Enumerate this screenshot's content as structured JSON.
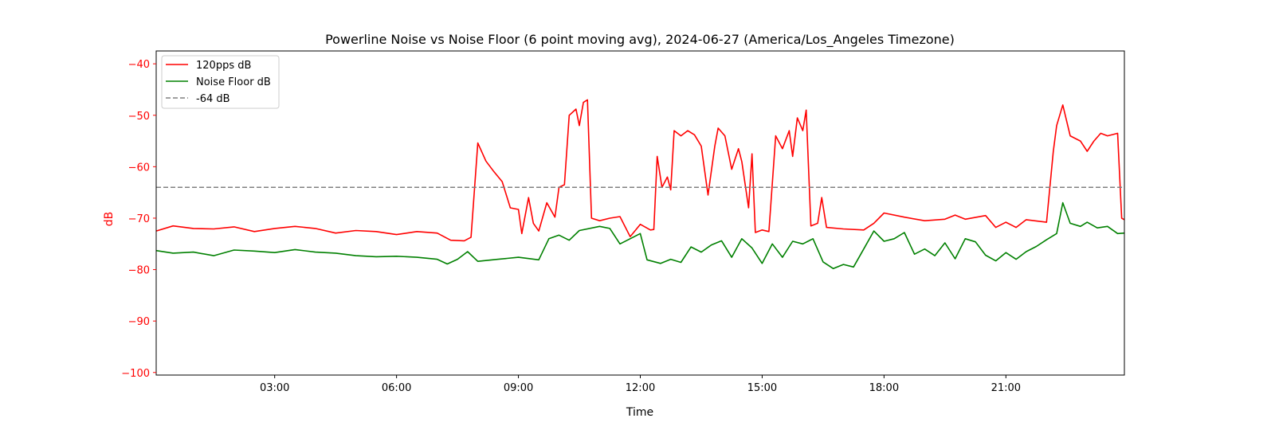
{
  "chart_data": {
    "type": "line",
    "title": "Powerline Noise vs Noise Floor (6 point moving avg), 2024-06-27 (America/Los_Angeles Timezone)",
    "xlabel": "Time",
    "ylabel": "dB",
    "xlim": [
      "00:05",
      "23:55"
    ],
    "ylim": [
      -100.5,
      -37.5
    ],
    "x_ticks": [
      "03:00",
      "06:00",
      "09:00",
      "12:00",
      "15:00",
      "18:00",
      "21:00"
    ],
    "y_ticks": [
      -40,
      -50,
      -60,
      -70,
      -80,
      -90,
      -100
    ],
    "grid": false,
    "legend_position": "upper-left",
    "colors": {
      "signal": "#ff0000",
      "floor": "#008000",
      "threshold": "#808080",
      "ylabel": "#ff0000",
      "yticks": "#ff0000"
    },
    "series": [
      {
        "name": "120pps dB",
        "color": "#ff0000",
        "style": "solid",
        "points": [
          [
            "00:05",
            -72.5
          ],
          [
            "00:30",
            -71.5
          ],
          [
            "01:00",
            -72.0
          ],
          [
            "01:30",
            -72.1
          ],
          [
            "02:00",
            -71.7
          ],
          [
            "02:30",
            -72.6
          ],
          [
            "03:00",
            -72.0
          ],
          [
            "03:30",
            -71.6
          ],
          [
            "04:00",
            -72.0
          ],
          [
            "04:30",
            -72.9
          ],
          [
            "05:00",
            -72.4
          ],
          [
            "05:30",
            -72.6
          ],
          [
            "06:00",
            -73.2
          ],
          [
            "06:30",
            -72.6
          ],
          [
            "07:00",
            -72.9
          ],
          [
            "07:20",
            -74.3
          ],
          [
            "07:40",
            -74.4
          ],
          [
            "07:50",
            -73.7
          ],
          [
            "08:00",
            -55.4
          ],
          [
            "08:12",
            -58.9
          ],
          [
            "08:24",
            -61.0
          ],
          [
            "08:36",
            -62.9
          ],
          [
            "08:48",
            -68.0
          ],
          [
            "09:00",
            -68.3
          ],
          [
            "09:05",
            -73.0
          ],
          [
            "09:15",
            -66.0
          ],
          [
            "09:22",
            -71.0
          ],
          [
            "09:30",
            -72.5
          ],
          [
            "09:42",
            -67.0
          ],
          [
            "09:54",
            -69.8
          ],
          [
            "10:00",
            -64.0
          ],
          [
            "10:08",
            -63.5
          ],
          [
            "10:15",
            -50.0
          ],
          [
            "10:25",
            -48.8
          ],
          [
            "10:30",
            -52.0
          ],
          [
            "10:36",
            -47.5
          ],
          [
            "10:42",
            -47.0
          ],
          [
            "10:48",
            -70.0
          ],
          [
            "11:00",
            -70.5
          ],
          [
            "11:15",
            -70.0
          ],
          [
            "11:30",
            -69.7
          ],
          [
            "11:45",
            -73.6
          ],
          [
            "12:00",
            -71.2
          ],
          [
            "12:15",
            -72.3
          ],
          [
            "12:20",
            -72.2
          ],
          [
            "12:25",
            -58.0
          ],
          [
            "12:32",
            -64.0
          ],
          [
            "12:40",
            -62.0
          ],
          [
            "12:45",
            -64.5
          ],
          [
            "12:50",
            -53.0
          ],
          [
            "13:00",
            -54.0
          ],
          [
            "13:10",
            -53.0
          ],
          [
            "13:20",
            -53.8
          ],
          [
            "13:30",
            -56.0
          ],
          [
            "13:40",
            -65.5
          ],
          [
            "13:50",
            -56.0
          ],
          [
            "13:55",
            -52.5
          ],
          [
            "14:05",
            -54.0
          ],
          [
            "14:15",
            -60.5
          ],
          [
            "14:25",
            -56.5
          ],
          [
            "14:30",
            -59.0
          ],
          [
            "14:40",
            -68.0
          ],
          [
            "14:45",
            -57.5
          ],
          [
            "14:50",
            -72.8
          ],
          [
            "15:00",
            -72.3
          ],
          [
            "15:10",
            -72.6
          ],
          [
            "15:20",
            -54.0
          ],
          [
            "15:30",
            -56.5
          ],
          [
            "15:40",
            -53.0
          ],
          [
            "15:45",
            -58.0
          ],
          [
            "15:52",
            -50.5
          ],
          [
            "16:00",
            -53.0
          ],
          [
            "16:05",
            -49.0
          ],
          [
            "16:12",
            -71.5
          ],
          [
            "16:22",
            -71.0
          ],
          [
            "16:28",
            -66.0
          ],
          [
            "16:35",
            -71.8
          ],
          [
            "17:00",
            -72.1
          ],
          [
            "17:30",
            -72.3
          ],
          [
            "17:45",
            -71.0
          ],
          [
            "18:00",
            -69.0
          ],
          [
            "18:30",
            -69.8
          ],
          [
            "19:00",
            -70.5
          ],
          [
            "19:30",
            -70.2
          ],
          [
            "19:45",
            -69.4
          ],
          [
            "20:00",
            -70.2
          ],
          [
            "20:30",
            -69.5
          ],
          [
            "20:45",
            -71.8
          ],
          [
            "21:00",
            -70.8
          ],
          [
            "21:15",
            -71.8
          ],
          [
            "21:30",
            -70.3
          ],
          [
            "22:00",
            -70.8
          ],
          [
            "22:10",
            -57.0
          ],
          [
            "22:15",
            -52.0
          ],
          [
            "22:24",
            -48.0
          ],
          [
            "22:35",
            -54.0
          ],
          [
            "22:50",
            -55.0
          ],
          [
            "23:00",
            -57.0
          ],
          [
            "23:10",
            -55.0
          ],
          [
            "23:20",
            -53.5
          ],
          [
            "23:30",
            -54.0
          ],
          [
            "23:45",
            -53.5
          ],
          [
            "23:51",
            -70.0
          ],
          [
            "23:55",
            -70.3
          ]
        ]
      },
      {
        "name": "Noise Floor dB",
        "color": "#008000",
        "style": "solid",
        "points": [
          [
            "00:05",
            -76.3
          ],
          [
            "00:30",
            -76.8
          ],
          [
            "01:00",
            -76.6
          ],
          [
            "01:30",
            -77.3
          ],
          [
            "02:00",
            -76.2
          ],
          [
            "02:30",
            -76.4
          ],
          [
            "03:00",
            -76.7
          ],
          [
            "03:30",
            -76.1
          ],
          [
            "04:00",
            -76.6
          ],
          [
            "04:30",
            -76.8
          ],
          [
            "05:00",
            -77.3
          ],
          [
            "05:30",
            -77.5
          ],
          [
            "06:00",
            -77.4
          ],
          [
            "06:30",
            -77.6
          ],
          [
            "07:00",
            -78.0
          ],
          [
            "07:15",
            -78.9
          ],
          [
            "07:30",
            -78.0
          ],
          [
            "07:45",
            -76.5
          ],
          [
            "08:00",
            -78.4
          ],
          [
            "08:30",
            -78.0
          ],
          [
            "09:00",
            -77.6
          ],
          [
            "09:30",
            -78.1
          ],
          [
            "09:45",
            -74.0
          ],
          [
            "10:00",
            -73.3
          ],
          [
            "10:15",
            -74.3
          ],
          [
            "10:30",
            -72.4
          ],
          [
            "11:00",
            -71.6
          ],
          [
            "11:15",
            -72.0
          ],
          [
            "11:30",
            -75.0
          ],
          [
            "11:45",
            -74.0
          ],
          [
            "12:00",
            -73.0
          ],
          [
            "12:10",
            -78.1
          ],
          [
            "12:30",
            -78.8
          ],
          [
            "12:45",
            -78.0
          ],
          [
            "13:00",
            -78.6
          ],
          [
            "13:15",
            -75.6
          ],
          [
            "13:30",
            -76.6
          ],
          [
            "13:45",
            -75.2
          ],
          [
            "14:00",
            -74.4
          ],
          [
            "14:15",
            -77.6
          ],
          [
            "14:30",
            -74.0
          ],
          [
            "14:45",
            -75.8
          ],
          [
            "15:00",
            -78.8
          ],
          [
            "15:15",
            -75.0
          ],
          [
            "15:30",
            -77.6
          ],
          [
            "15:45",
            -74.5
          ],
          [
            "16:00",
            -75.0
          ],
          [
            "16:15",
            -74.0
          ],
          [
            "16:30",
            -78.5
          ],
          [
            "16:45",
            -79.8
          ],
          [
            "17:00",
            -79.0
          ],
          [
            "17:15",
            -79.5
          ],
          [
            "17:30",
            -76.0
          ],
          [
            "17:45",
            -72.5
          ],
          [
            "18:00",
            -74.5
          ],
          [
            "18:15",
            -74.0
          ],
          [
            "18:30",
            -72.8
          ],
          [
            "18:45",
            -77.0
          ],
          [
            "19:00",
            -76.0
          ],
          [
            "19:15",
            -77.3
          ],
          [
            "19:30",
            -74.8
          ],
          [
            "19:45",
            -77.9
          ],
          [
            "20:00",
            -74.0
          ],
          [
            "20:15",
            -74.6
          ],
          [
            "20:30",
            -77.2
          ],
          [
            "20:45",
            -78.3
          ],
          [
            "21:00",
            -76.7
          ],
          [
            "21:15",
            -78.0
          ],
          [
            "21:30",
            -76.5
          ],
          [
            "21:45",
            -75.5
          ],
          [
            "22:00",
            -74.2
          ],
          [
            "22:15",
            -73.0
          ],
          [
            "22:24",
            -67.0
          ],
          [
            "22:35",
            -71.0
          ],
          [
            "22:50",
            -71.6
          ],
          [
            "23:00",
            -70.8
          ],
          [
            "23:15",
            -71.9
          ],
          [
            "23:30",
            -71.6
          ],
          [
            "23:45",
            -73.0
          ],
          [
            "23:55",
            -72.9
          ]
        ]
      },
      {
        "name": "-64 dB",
        "color": "#808080",
        "style": "dashed",
        "points": [
          [
            "00:05",
            -64
          ],
          [
            "23:55",
            -64
          ]
        ]
      }
    ]
  }
}
